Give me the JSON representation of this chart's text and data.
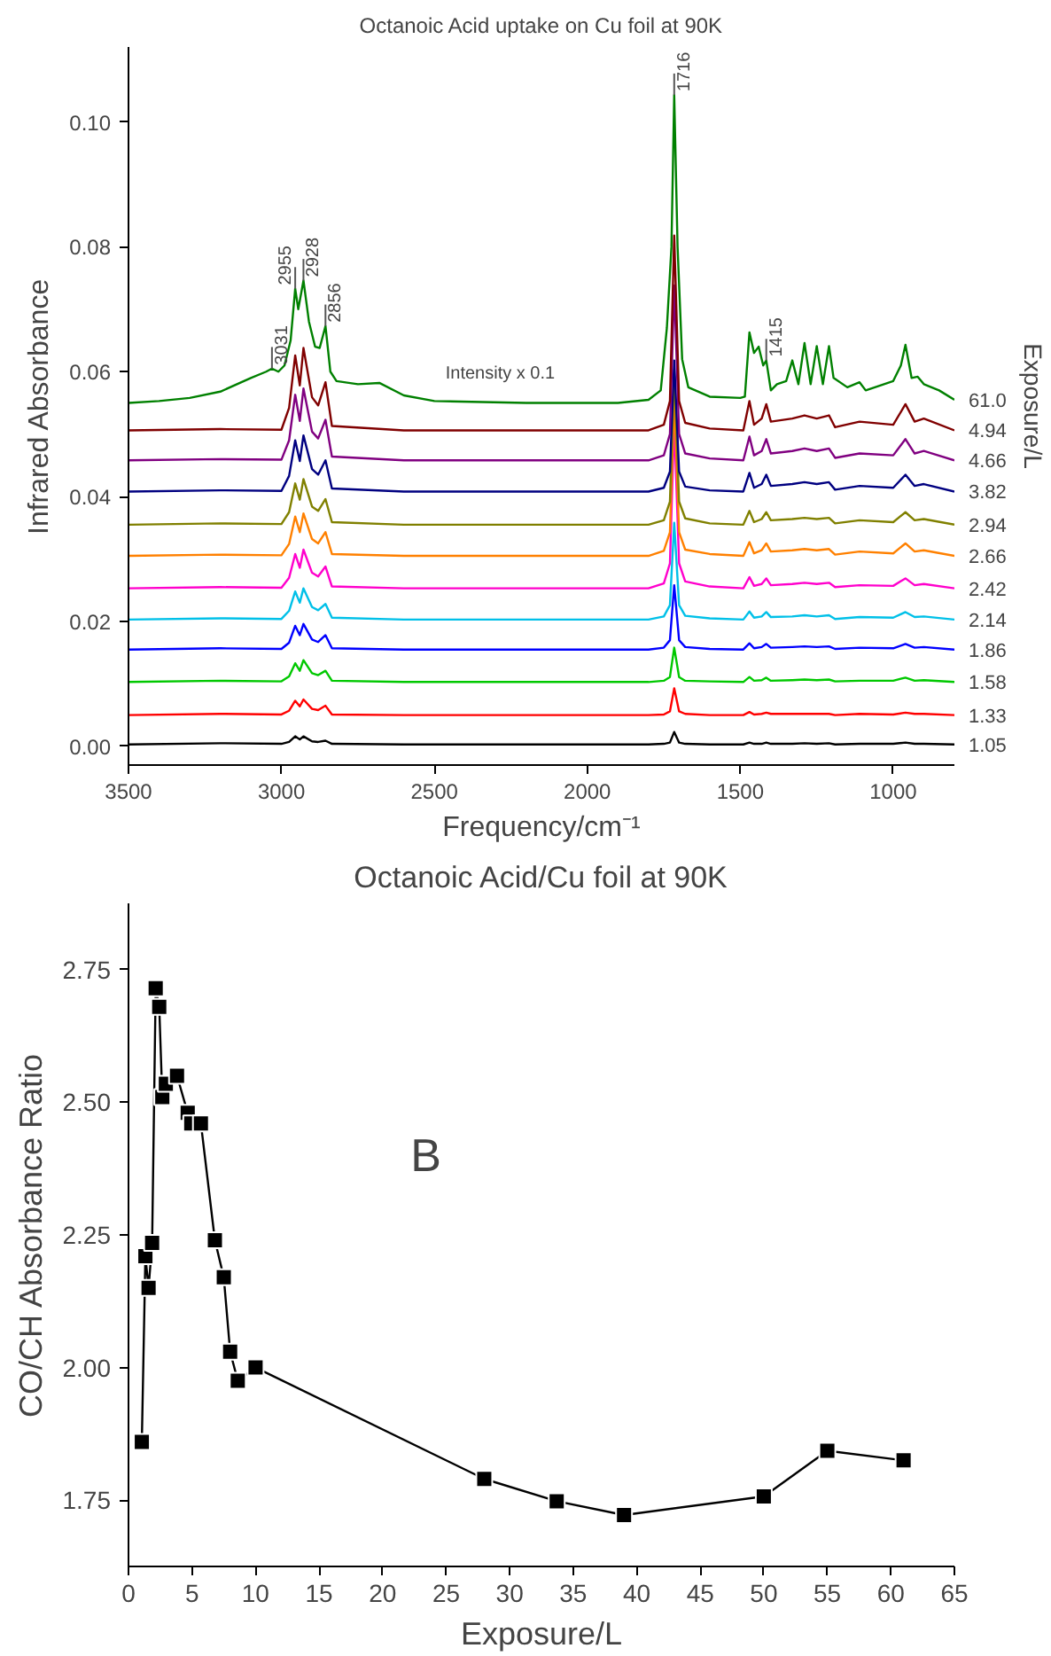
{
  "chart_data": [
    {
      "type": "line",
      "title": "Octanoic Acid uptake on Cu foil at 90K",
      "xlabel": "Frequency/cm⁻¹",
      "ylabel": "Infrared Absorbance",
      "legend_title": "Exposure/L",
      "xlim": [
        3500,
        800
      ],
      "xticks": [
        3500,
        3000,
        2500,
        2000,
        1500,
        1000
      ],
      "ylim": [
        -0.003,
        0.112
      ],
      "yticks": [
        {
          "value": 0,
          "label": "0.00"
        },
        {
          "value": 0.02,
          "label": "0.02"
        },
        {
          "value": 0.04,
          "label": "0.04"
        },
        {
          "value": 0.06,
          "label": "0.06"
        },
        {
          "value": 0.08,
          "label": "0.08"
        },
        {
          "value": 0.1,
          "label": "0.10"
        }
      ],
      "x": [
        3500,
        3200,
        3000,
        2975,
        2955,
        2940,
        2928,
        2900,
        2880,
        2856,
        2835,
        2600,
        2200,
        1800,
        1750,
        1730,
        1716,
        1700,
        1680,
        1600,
        1490,
        1470,
        1455,
        1430,
        1415,
        1400,
        1330,
        1290,
        1250,
        1210,
        1190,
        1110,
        1000,
        960,
        930,
        900,
        800
      ],
      "series": [
        {
          "name": "1.05",
          "color": "#000000",
          "values": [
            0.0003,
            0.0005,
            0.0004,
            0.0007,
            0.0016,
            0.0011,
            0.0016,
            0.0008,
            0.0007,
            0.0009,
            0.0004,
            0.0003,
            0.0003,
            0.0003,
            0.0004,
            0.0006,
            0.0023,
            0.0006,
            0.0004,
            0.0003,
            0.0003,
            0.0006,
            0.0004,
            0.0004,
            0.0006,
            0.0004,
            0.0004,
            0.0005,
            0.0004,
            0.0005,
            0.0003,
            0.0004,
            0.0004,
            0.0006,
            0.0004,
            0.0004,
            0.0003
          ]
        },
        {
          "name": "1.33",
          "color": "#ff0000",
          "values": [
            0.005,
            0.0052,
            0.0051,
            0.0057,
            0.0073,
            0.0064,
            0.0075,
            0.006,
            0.0058,
            0.0065,
            0.0051,
            0.005,
            0.005,
            0.005,
            0.0051,
            0.0056,
            0.0093,
            0.0056,
            0.0052,
            0.005,
            0.005,
            0.0055,
            0.0051,
            0.0052,
            0.0054,
            0.0052,
            0.0052,
            0.0052,
            0.0052,
            0.0052,
            0.005,
            0.0052,
            0.0051,
            0.0054,
            0.0052,
            0.0052,
            0.005
          ]
        },
        {
          "name": "1.58",
          "color": "#00c800",
          "values": [
            0.0103,
            0.0105,
            0.0104,
            0.0112,
            0.0133,
            0.0121,
            0.0138,
            0.0117,
            0.0114,
            0.0121,
            0.0105,
            0.0103,
            0.0103,
            0.0103,
            0.0105,
            0.0111,
            0.0158,
            0.0111,
            0.0105,
            0.0104,
            0.0103,
            0.0111,
            0.0105,
            0.0106,
            0.011,
            0.0105,
            0.0106,
            0.0107,
            0.0106,
            0.0107,
            0.0104,
            0.0105,
            0.0105,
            0.011,
            0.0105,
            0.0106,
            0.0103
          ]
        },
        {
          "name": "1.86",
          "color": "#0000ff",
          "values": [
            0.0155,
            0.0157,
            0.0156,
            0.0166,
            0.0193,
            0.0178,
            0.0196,
            0.0171,
            0.0167,
            0.0178,
            0.0157,
            0.0155,
            0.0155,
            0.0155,
            0.0158,
            0.017,
            0.0258,
            0.017,
            0.0159,
            0.0156,
            0.0155,
            0.0165,
            0.0157,
            0.0159,
            0.0164,
            0.0158,
            0.0159,
            0.016,
            0.0159,
            0.016,
            0.0156,
            0.0158,
            0.0157,
            0.0164,
            0.0158,
            0.0159,
            0.0155
          ]
        },
        {
          "name": "2.14",
          "color": "#00c0e8",
          "values": [
            0.0203,
            0.0205,
            0.0204,
            0.0217,
            0.0248,
            0.023,
            0.0253,
            0.0223,
            0.0218,
            0.0228,
            0.0206,
            0.0203,
            0.0203,
            0.0203,
            0.0208,
            0.0226,
            0.0358,
            0.0226,
            0.0209,
            0.0205,
            0.0203,
            0.0216,
            0.0206,
            0.0208,
            0.0215,
            0.0207,
            0.0208,
            0.021,
            0.0208,
            0.021,
            0.0204,
            0.0207,
            0.0206,
            0.0215,
            0.0207,
            0.0208,
            0.0203
          ]
        },
        {
          "name": "2.42",
          "color": "#ff00cc",
          "values": [
            0.0253,
            0.0255,
            0.0254,
            0.027,
            0.0308,
            0.0286,
            0.0315,
            0.0278,
            0.0272,
            0.0288,
            0.0256,
            0.0253,
            0.0253,
            0.0253,
            0.0261,
            0.0293,
            0.0518,
            0.0293,
            0.0264,
            0.0256,
            0.0253,
            0.0271,
            0.0257,
            0.026,
            0.0269,
            0.0258,
            0.026,
            0.0262,
            0.026,
            0.0262,
            0.0255,
            0.0258,
            0.0257,
            0.0269,
            0.0258,
            0.026,
            0.0253
          ]
        },
        {
          "name": "2.66",
          "color": "#ff8000",
          "values": [
            0.0305,
            0.0307,
            0.0306,
            0.0324,
            0.0368,
            0.0343,
            0.0373,
            0.0332,
            0.0325,
            0.0343,
            0.0308,
            0.0305,
            0.0305,
            0.0305,
            0.0313,
            0.0343,
            0.0558,
            0.0343,
            0.0315,
            0.0308,
            0.0305,
            0.0327,
            0.0309,
            0.0314,
            0.0325,
            0.0312,
            0.0314,
            0.0316,
            0.0314,
            0.0316,
            0.0307,
            0.0312,
            0.0309,
            0.0325,
            0.0312,
            0.0314,
            0.0305
          ]
        },
        {
          "name": "2.94",
          "color": "#808000",
          "values": [
            0.0355,
            0.0357,
            0.0356,
            0.0375,
            0.0421,
            0.0395,
            0.0428,
            0.0384,
            0.0377,
            0.0396,
            0.0359,
            0.0355,
            0.0355,
            0.0355,
            0.0362,
            0.0392,
            0.0603,
            0.0392,
            0.0365,
            0.0357,
            0.0355,
            0.0377,
            0.0359,
            0.0364,
            0.0375,
            0.0362,
            0.0364,
            0.0366,
            0.0364,
            0.0366,
            0.0357,
            0.0362,
            0.0359,
            0.0375,
            0.0362,
            0.0364,
            0.0355
          ]
        },
        {
          "name": "3.82",
          "color": "#000080",
          "values": [
            0.0408,
            0.041,
            0.0409,
            0.0433,
            0.049,
            0.0457,
            0.0498,
            0.0444,
            0.0435,
            0.0458,
            0.0413,
            0.0408,
            0.0408,
            0.0408,
            0.0414,
            0.044,
            0.0618,
            0.044,
            0.0416,
            0.041,
            0.0408,
            0.0438,
            0.0414,
            0.042,
            0.0435,
            0.0417,
            0.042,
            0.0423,
            0.042,
            0.0423,
            0.0411,
            0.0417,
            0.0414,
            0.0435,
            0.0417,
            0.042,
            0.0408
          ]
        },
        {
          "name": "4.66",
          "color": "#800080",
          "values": [
            0.0458,
            0.046,
            0.0459,
            0.049,
            0.0563,
            0.0521,
            0.0573,
            0.0504,
            0.0493,
            0.0523,
            0.0464,
            0.0458,
            0.0458,
            0.0458,
            0.0466,
            0.05,
            0.0738,
            0.05,
            0.0469,
            0.0461,
            0.0458,
            0.0496,
            0.0466,
            0.0473,
            0.0492,
            0.0469,
            0.0473,
            0.0477,
            0.0473,
            0.0477,
            0.0462,
            0.0469,
            0.0466,
            0.0492,
            0.0469,
            0.0473,
            0.0458
          ]
        },
        {
          "name": "4.94",
          "color": "#800000",
          "values": [
            0.0506,
            0.0508,
            0.0507,
            0.0542,
            0.0626,
            0.0578,
            0.0638,
            0.0559,
            0.0546,
            0.0583,
            0.0513,
            0.0506,
            0.0506,
            0.0506,
            0.0515,
            0.0553,
            0.0818,
            0.0553,
            0.0518,
            0.0509,
            0.0506,
            0.0553,
            0.0515,
            0.0525,
            0.0548,
            0.052,
            0.0525,
            0.053,
            0.0525,
            0.053,
            0.0511,
            0.052,
            0.0515,
            0.0548,
            0.052,
            0.0525,
            0.0506
          ]
        },
        {
          "name": "61.0",
          "color": "#008000",
          "x": [
            3500,
            3400,
            3300,
            3200,
            3100,
            3050,
            3031,
            3010,
            2990,
            2970,
            2955,
            2945,
            2928,
            2910,
            2890,
            2875,
            2856,
            2840,
            2820,
            2750,
            2680,
            2600,
            2500,
            2200,
            1900,
            1800,
            1760,
            1740,
            1725,
            1716,
            1705,
            1690,
            1670,
            1600,
            1500,
            1485,
            1470,
            1455,
            1440,
            1425,
            1415,
            1400,
            1380,
            1350,
            1330,
            1310,
            1290,
            1270,
            1250,
            1230,
            1210,
            1195,
            1150,
            1110,
            1090,
            1060,
            1000,
            975,
            960,
            940,
            920,
            900,
            850,
            800
          ],
          "values": [
            0.055,
            0.0553,
            0.0558,
            0.0568,
            0.059,
            0.06,
            0.0605,
            0.06,
            0.061,
            0.065,
            0.0733,
            0.07,
            0.0746,
            0.068,
            0.064,
            0.0638,
            0.0673,
            0.06,
            0.0585,
            0.058,
            0.0582,
            0.0562,
            0.0553,
            0.055,
            0.055,
            0.0555,
            0.057,
            0.067,
            0.08,
            0.1043,
            0.08,
            0.062,
            0.0575,
            0.056,
            0.0558,
            0.056,
            0.0663,
            0.063,
            0.064,
            0.061,
            0.0618,
            0.057,
            0.058,
            0.0585,
            0.0618,
            0.058,
            0.0646,
            0.058,
            0.0641,
            0.058,
            0.0641,
            0.059,
            0.0575,
            0.0583,
            0.057,
            0.0575,
            0.0585,
            0.061,
            0.0643,
            0.059,
            0.0592,
            0.058,
            0.057,
            0.0555
          ]
        }
      ],
      "annotations": [
        {
          "text": "3031",
          "x": 3031,
          "y": 0.0605
        },
        {
          "text": "2955",
          "x": 2955,
          "y": 0.0733
        },
        {
          "text": "2928",
          "x": 2928,
          "y": 0.0746
        },
        {
          "text": "2856",
          "x": 2856,
          "y": 0.0673
        },
        {
          "text": "1716",
          "x": 1716,
          "y": 0.1043
        },
        {
          "text": "1415",
          "x": 1415,
          "y": 0.0618
        },
        "Intensity x 0.1"
      ]
    },
    {
      "type": "line",
      "marker": "square",
      "color": "#000000",
      "title": "Octanoic Acid/Cu foil at 90K",
      "xlabel": "Exposure/L",
      "ylabel": "CO/CH Absorbance Ratio",
      "xlim": [
        0,
        65
      ],
      "xticks": [
        0,
        5,
        10,
        15,
        20,
        25,
        30,
        35,
        40,
        45,
        50,
        55,
        60,
        65
      ],
      "ylim": [
        1.625,
        2.875
      ],
      "yticks": [
        {
          "value": 1.75,
          "label": "1.75"
        },
        {
          "value": 2.0,
          "label": "2.00"
        },
        {
          "value": 2.25,
          "label": "2.25"
        },
        {
          "value": 2.5,
          "label": "2.50"
        },
        {
          "value": 2.75,
          "label": "2.75"
        }
      ],
      "x": [
        1.05,
        1.33,
        1.58,
        1.86,
        2.14,
        2.42,
        2.66,
        2.94,
        3.82,
        4.66,
        4.94,
        5.7,
        6.8,
        7.5,
        8.0,
        8.6,
        10,
        28,
        33.7,
        39,
        50,
        55,
        61
      ],
      "values": [
        1.86,
        2.21,
        2.15,
        2.235,
        2.715,
        2.68,
        2.51,
        2.535,
        2.55,
        2.48,
        2.46,
        2.46,
        2.24,
        2.17,
        2.03,
        1.975,
        2.0,
        1.79,
        1.748,
        1.722,
        1.757,
        1.843,
        1.825
      ],
      "annotations": [
        "B"
      ]
    }
  ]
}
